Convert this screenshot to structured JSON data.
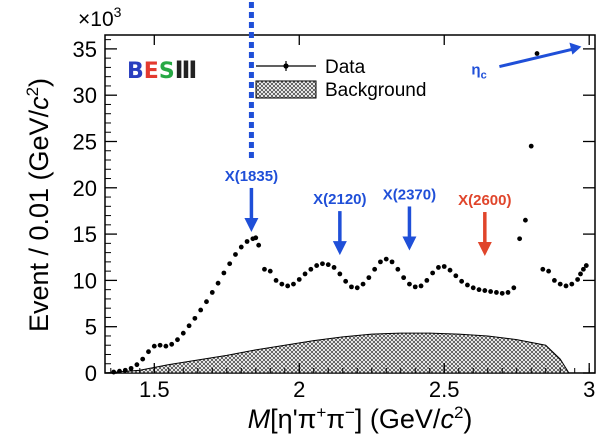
{
  "chart_data": {
    "type": "scatter",
    "xlabel_parts": [
      "M",
      "[η'π",
      "+",
      "π",
      "−",
      "] (GeV/",
      "c",
      "2",
      ")"
    ],
    "ylabel_parts": [
      "Event / 0.01 (GeV/",
      "c",
      "2",
      ")"
    ],
    "y_multiplier": {
      "base": "×10",
      "exp": "3"
    },
    "xlim": [
      1.33,
      3.02
    ],
    "ylim": [
      0,
      36.5
    ],
    "x_ticks": [
      1.5,
      2,
      2.5,
      3
    ],
    "x_tick_labels": [
      "1.5",
      "2",
      "2.5",
      "3"
    ],
    "y_ticks": [
      0,
      5,
      10,
      15,
      20,
      25,
      30,
      35
    ],
    "y_tick_labels": [
      "0",
      "5",
      "10",
      "15",
      "20",
      "25",
      "30",
      "35"
    ],
    "legend": {
      "placement": "top-center",
      "entries": [
        {
          "label": "Data",
          "kind": "marker"
        },
        {
          "label": "Background",
          "kind": "hatched-fill"
        }
      ]
    },
    "logo": "BESIII",
    "series": [
      {
        "name": "Data",
        "x": [
          1.36,
          1.38,
          1.4,
          1.42,
          1.44,
          1.46,
          1.48,
          1.5,
          1.52,
          1.54,
          1.56,
          1.58,
          1.6,
          1.62,
          1.64,
          1.66,
          1.68,
          1.7,
          1.72,
          1.74,
          1.76,
          1.78,
          1.8,
          1.82,
          1.84,
          1.85,
          1.86,
          1.88,
          1.9,
          1.92,
          1.94,
          1.96,
          1.98,
          2.0,
          2.02,
          2.04,
          2.06,
          2.08,
          2.1,
          2.12,
          2.14,
          2.16,
          2.18,
          2.2,
          2.22,
          2.24,
          2.26,
          2.28,
          2.3,
          2.32,
          2.34,
          2.36,
          2.38,
          2.4,
          2.42,
          2.44,
          2.46,
          2.48,
          2.5,
          2.52,
          2.54,
          2.56,
          2.58,
          2.6,
          2.62,
          2.64,
          2.66,
          2.68,
          2.7,
          2.72,
          2.74,
          2.76,
          2.78,
          2.8,
          2.82,
          2.84,
          2.86,
          2.88,
          2.9,
          2.92,
          2.94,
          2.96,
          2.97,
          2.98,
          2.99
        ],
        "y": [
          0.1,
          0.2,
          0.3,
          0.5,
          0.9,
          1.5,
          2.3,
          2.9,
          3.0,
          2.9,
          3.1,
          3.6,
          4.3,
          5.1,
          5.9,
          6.8,
          7.7,
          8.7,
          9.7,
          10.8,
          11.8,
          12.8,
          13.6,
          14.2,
          14.5,
          14.6,
          13.8,
          11.2,
          11.0,
          10.0,
          9.6,
          9.4,
          9.6,
          10.1,
          10.7,
          11.2,
          11.6,
          11.8,
          11.7,
          11.4,
          10.7,
          9.9,
          9.3,
          9.2,
          9.6,
          10.3,
          11.2,
          12.0,
          12.3,
          12.0,
          11.2,
          10.3,
          9.6,
          9.3,
          9.4,
          10.0,
          10.8,
          11.4,
          11.5,
          11.1,
          10.5,
          9.9,
          9.5,
          9.2,
          9.0,
          8.9,
          8.8,
          8.7,
          8.6,
          8.7,
          9.2,
          14.5,
          16.5,
          24.5,
          34.5,
          11.2,
          11.0,
          10.0,
          9.6,
          9.4,
          9.6,
          10.1,
          10.7,
          11.2,
          11.6
        ]
      },
      {
        "name": "Background",
        "x": [
          1.33,
          1.45,
          1.55,
          1.65,
          1.75,
          1.85,
          1.95,
          2.05,
          2.15,
          2.25,
          2.35,
          2.45,
          2.55,
          2.65,
          2.75,
          2.85,
          2.9,
          2.93
        ],
        "y": [
          0,
          0.3,
          0.9,
          1.4,
          1.9,
          2.5,
          3.0,
          3.5,
          3.9,
          4.2,
          4.3,
          4.3,
          4.2,
          4.0,
          3.6,
          3.0,
          1.5,
          0
        ]
      }
    ],
    "annotations": [
      {
        "label": "X(1835)",
        "color": "#1f4fd8",
        "x": 1.835,
        "y_tip": 14.8,
        "dashed": true
      },
      {
        "label": "X(2120)",
        "color": "#1f4fd8",
        "x": 2.14,
        "y_tip": 12.3,
        "dashed": false
      },
      {
        "label": "X(2370)",
        "color": "#1f4fd8",
        "x": 2.38,
        "y_tip": 12.8,
        "dashed": false
      },
      {
        "label": "X(2600)",
        "color": "#e0452b",
        "x": 2.64,
        "y_tip": 12.2,
        "dashed": false
      },
      {
        "label": "η",
        "sub": "c",
        "color": "#1f4fd8",
        "x": 2.98,
        "y_tip": 34.6,
        "dashed": false
      }
    ]
  }
}
